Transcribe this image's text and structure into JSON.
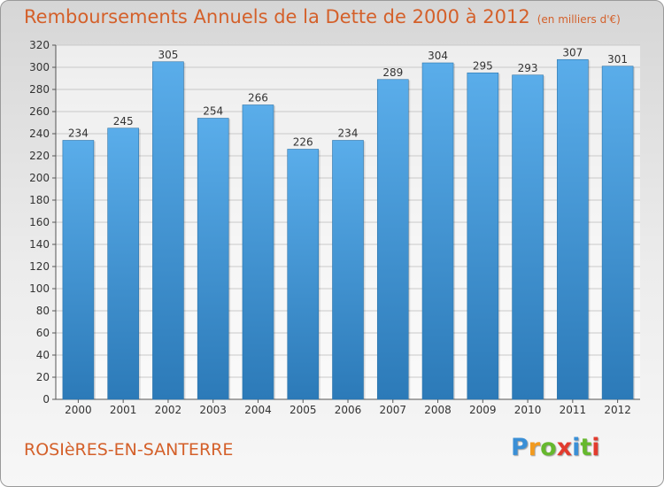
{
  "header": {
    "title": "Remboursements Annuels de la Dette de 2000 à 2012",
    "unit": "(en milliers d'€)"
  },
  "footer": {
    "place": "ROSIèRES-EN-SANTERRE",
    "brand_letters": [
      "P",
      "r",
      "o",
      "x",
      "i",
      "t",
      "i"
    ]
  },
  "colors": {
    "title": "#d4602a",
    "bar_top": "#5aadea",
    "bar_bottom": "#2c7ab8",
    "brand": [
      "#3a8fd6",
      "#f29a1e",
      "#66b82e",
      "#e23b2e",
      "#3a8fd6",
      "#66b82e",
      "#e23b2e"
    ]
  },
  "chart_data": {
    "type": "bar",
    "categories": [
      "2000",
      "2001",
      "2002",
      "2003",
      "2004",
      "2005",
      "2006",
      "2007",
      "2008",
      "2009",
      "2010",
      "2011",
      "2012"
    ],
    "values": [
      234,
      245,
      305,
      254,
      266,
      226,
      234,
      289,
      304,
      295,
      293,
      307,
      301
    ],
    "ylim": [
      0,
      320
    ],
    "ytick_step": 20,
    "yticks": [
      "0",
      "20",
      "40",
      "60",
      "80",
      "100",
      "120",
      "140",
      "160",
      "180",
      "200",
      "220",
      "240",
      "260",
      "280",
      "300",
      "320"
    ],
    "data_labels": [
      "234",
      "245",
      "305",
      "254",
      "266",
      "226",
      "234",
      "289",
      "304",
      "295",
      "293",
      "307",
      "301"
    ],
    "grid": true,
    "legend": "none"
  }
}
